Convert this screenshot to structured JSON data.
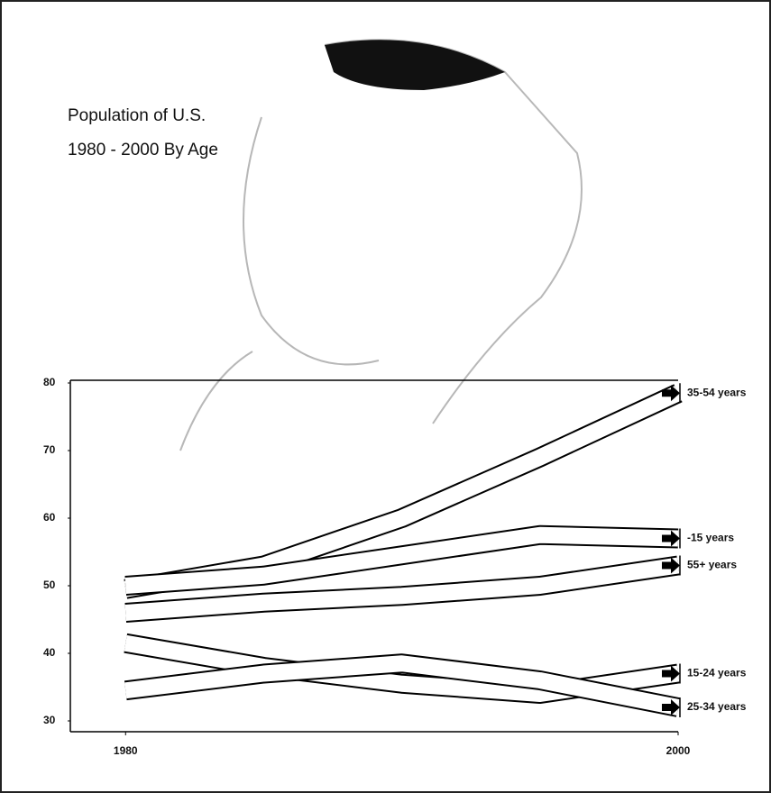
{
  "chart_data": {
    "type": "line",
    "title": "Population of U.S.",
    "subtitle": "1980 - 2000 By Age",
    "color": "#000000",
    "x": [
      1980,
      1985,
      1990,
      1995,
      2000
    ],
    "xlim": [
      1978,
      2000
    ],
    "xticks": [
      1980,
      2000
    ],
    "ylim": [
      28,
      80
    ],
    "yticks": [
      30,
      40,
      50,
      60,
      70,
      80
    ],
    "series": [
      {
        "name": "35-54 years",
        "values": [
          49.5,
          53,
          60,
          69,
          78.5
        ]
      },
      {
        "name": "-15 years",
        "values": [
          50,
          51.5,
          54.5,
          57.5,
          57
        ]
      },
      {
        "name": "55+ years",
        "values": [
          46,
          47.5,
          48.5,
          50,
          53
        ]
      },
      {
        "name": "15-24 years",
        "values": [
          41.5,
          38,
          35.5,
          34,
          37
        ]
      },
      {
        "name": "25-34 years",
        "values": [
          34.5,
          37,
          38.5,
          36,
          32
        ]
      }
    ]
  }
}
